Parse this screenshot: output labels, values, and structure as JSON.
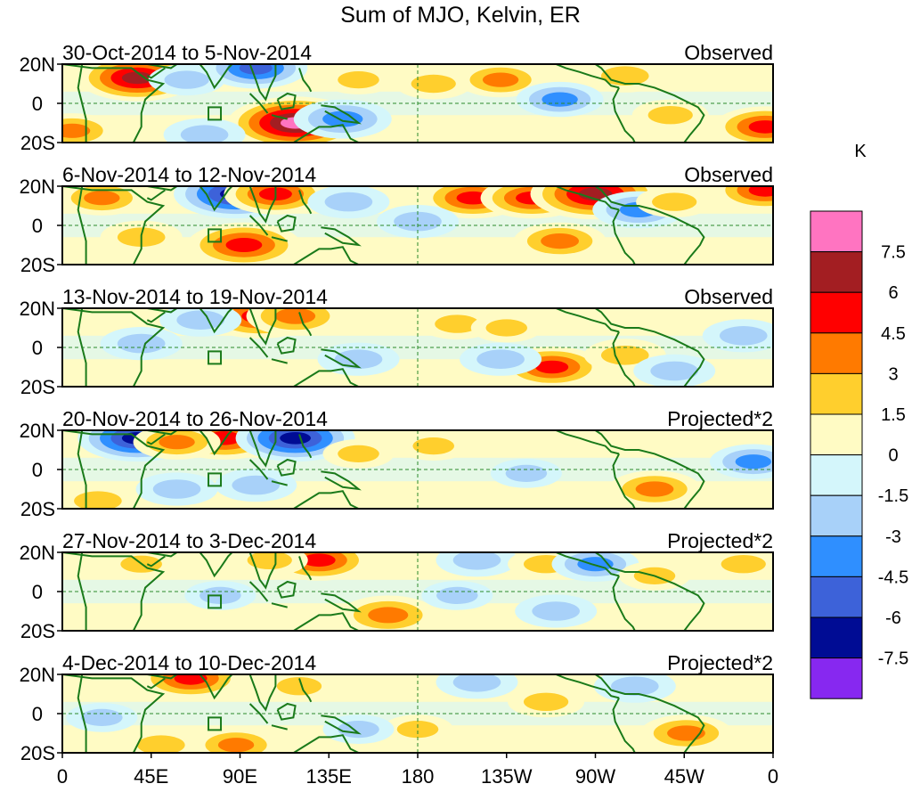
{
  "chart_data": {
    "type": "heatmap",
    "title": "Sum of MJO, Kelvin, ER",
    "units": "K",
    "x_ticks": [
      "0",
      "45E",
      "90E",
      "135E",
      "180",
      "135W",
      "90W",
      "45W",
      "0"
    ],
    "y_ticks": [
      "20N",
      "0",
      "20S"
    ],
    "lat_range": [
      -20,
      20
    ],
    "lon_range": [
      0,
      360
    ],
    "colorbar": {
      "levels": [
        "7.5",
        "6",
        "4.5",
        "3",
        "1.5",
        "0",
        "-1.5",
        "-3",
        "-4.5",
        "-6",
        "-7.5"
      ],
      "colors": [
        "#ff74c1",
        "#a31e22",
        "#ff0000",
        "#ff7a00",
        "#ffcf2d",
        "#fffbc4",
        "#d4f6fb",
        "#a8d1f9",
        "#2f8fff",
        "#3d62d9",
        "#000c94",
        "#8728f0"
      ]
    },
    "panels": [
      {
        "date_range": "30-Oct-2014 to 5-Nov-2014",
        "label": "Observed",
        "anomalies": [
          {
            "lon": 38,
            "lat": 13,
            "value": 6.5
          },
          {
            "lon": 63,
            "lat": 12,
            "value": -2.5
          },
          {
            "lon": 98,
            "lat": 18,
            "value": -5
          },
          {
            "lon": 118,
            "lat": -10,
            "value": 8
          },
          {
            "lon": 142,
            "lat": -8,
            "value": -4.5
          },
          {
            "lon": 188,
            "lat": 10,
            "value": 2.5
          },
          {
            "lon": 222,
            "lat": 12,
            "value": 3.5
          },
          {
            "lon": 252,
            "lat": 2,
            "value": -3.5
          },
          {
            "lon": 285,
            "lat": 14,
            "value": 3
          },
          {
            "lon": 308,
            "lat": -6,
            "value": 2.5
          },
          {
            "lon": 356,
            "lat": -12,
            "value": 5
          },
          {
            "lon": 5,
            "lat": -14,
            "value": 3.5
          },
          {
            "lon": 72,
            "lat": -16,
            "value": -3
          },
          {
            "lon": 150,
            "lat": 12,
            "value": 2
          }
        ]
      },
      {
        "date_range": "6-Nov-2014 to 12-Nov-2014",
        "label": "Observed",
        "anomalies": [
          {
            "lon": 20,
            "lat": 14,
            "value": 3.5
          },
          {
            "lon": 88,
            "lat": 16,
            "value": -7
          },
          {
            "lon": 108,
            "lat": 16,
            "value": 5
          },
          {
            "lon": 92,
            "lat": -10,
            "value": 6
          },
          {
            "lon": 145,
            "lat": 12,
            "value": -3
          },
          {
            "lon": 208,
            "lat": 14,
            "value": 5
          },
          {
            "lon": 238,
            "lat": 14,
            "value": 5
          },
          {
            "lon": 270,
            "lat": 16,
            "value": 7.5
          },
          {
            "lon": 292,
            "lat": 8,
            "value": -4
          },
          {
            "lon": 252,
            "lat": -8,
            "value": 4
          },
          {
            "lon": 310,
            "lat": 12,
            "value": 2.5
          },
          {
            "lon": 356,
            "lat": 18,
            "value": 5
          },
          {
            "lon": 40,
            "lat": -6,
            "value": 3
          },
          {
            "lon": 180,
            "lat": 2,
            "value": -3
          }
        ]
      },
      {
        "date_range": "13-Nov-2014 to 19-Nov-2014",
        "label": "Observed",
        "anomalies": [
          {
            "lon": 100,
            "lat": 16,
            "value": 6
          },
          {
            "lon": 118,
            "lat": 16,
            "value": 4.5
          },
          {
            "lon": 70,
            "lat": 14,
            "value": -3
          },
          {
            "lon": 40,
            "lat": 2,
            "value": -3
          },
          {
            "lon": 150,
            "lat": -6,
            "value": -3
          },
          {
            "lon": 200,
            "lat": 12,
            "value": 2.5
          },
          {
            "lon": 248,
            "lat": -10,
            "value": 5
          },
          {
            "lon": 285,
            "lat": -4,
            "value": 3
          },
          {
            "lon": 222,
            "lat": -6,
            "value": -3
          },
          {
            "lon": 310,
            "lat": -12,
            "value": -3
          },
          {
            "lon": 345,
            "lat": 6,
            "value": -3
          },
          {
            "lon": 225,
            "lat": 10,
            "value": 2
          }
        ]
      },
      {
        "date_range": "20-Nov-2014 to 26-Nov-2014",
        "label": "Projected*2",
        "anomalies": [
          {
            "lon": 38,
            "lat": 16,
            "value": -6.5
          },
          {
            "lon": 82,
            "lat": 16,
            "value": 5.5
          },
          {
            "lon": 118,
            "lat": 16,
            "value": -6.5
          },
          {
            "lon": 58,
            "lat": 14,
            "value": 3.5
          },
          {
            "lon": 98,
            "lat": -8,
            "value": -3
          },
          {
            "lon": 58,
            "lat": -10,
            "value": -3
          },
          {
            "lon": 188,
            "lat": 12,
            "value": 2
          },
          {
            "lon": 300,
            "lat": -10,
            "value": 4
          },
          {
            "lon": 350,
            "lat": 4,
            "value": -3.5
          },
          {
            "lon": 18,
            "lat": -16,
            "value": 3
          },
          {
            "lon": 150,
            "lat": 8,
            "value": 2
          },
          {
            "lon": 235,
            "lat": -2,
            "value": -2
          }
        ]
      },
      {
        "date_range": "27-Nov-2014 to 3-Dec-2014",
        "label": "Projected*2",
        "anomalies": [
          {
            "lon": 130,
            "lat": 16,
            "value": 5
          },
          {
            "lon": 105,
            "lat": 16,
            "value": 2.5
          },
          {
            "lon": 165,
            "lat": -12,
            "value": 4.5
          },
          {
            "lon": 80,
            "lat": -2,
            "value": -2
          },
          {
            "lon": 210,
            "lat": 16,
            "value": -3
          },
          {
            "lon": 245,
            "lat": 14,
            "value": 2.5
          },
          {
            "lon": 270,
            "lat": 14,
            "value": -3.5
          },
          {
            "lon": 300,
            "lat": 8,
            "value": 2
          },
          {
            "lon": 250,
            "lat": -10,
            "value": -3
          },
          {
            "lon": 40,
            "lat": 14,
            "value": 2
          },
          {
            "lon": 345,
            "lat": 14,
            "value": 2.5
          },
          {
            "lon": 200,
            "lat": -2,
            "value": -2
          }
        ]
      },
      {
        "date_range": "4-Dec-2014 to 10-Dec-2014",
        "label": "Projected*2",
        "anomalies": [
          {
            "lon": 65,
            "lat": 18,
            "value": 5
          },
          {
            "lon": 88,
            "lat": -16,
            "value": 3.5
          },
          {
            "lon": 50,
            "lat": -16,
            "value": 3
          },
          {
            "lon": 120,
            "lat": 14,
            "value": 2.5
          },
          {
            "lon": 210,
            "lat": 16,
            "value": -3
          },
          {
            "lon": 290,
            "lat": 14,
            "value": -3
          },
          {
            "lon": 316,
            "lat": -10,
            "value": 4
          },
          {
            "lon": 245,
            "lat": 6,
            "value": 2.5
          },
          {
            "lon": 180,
            "lat": -8,
            "value": 2
          },
          {
            "lon": 150,
            "lat": -8,
            "value": -2
          },
          {
            "lon": 20,
            "lat": -2,
            "value": -2
          }
        ]
      }
    ]
  }
}
